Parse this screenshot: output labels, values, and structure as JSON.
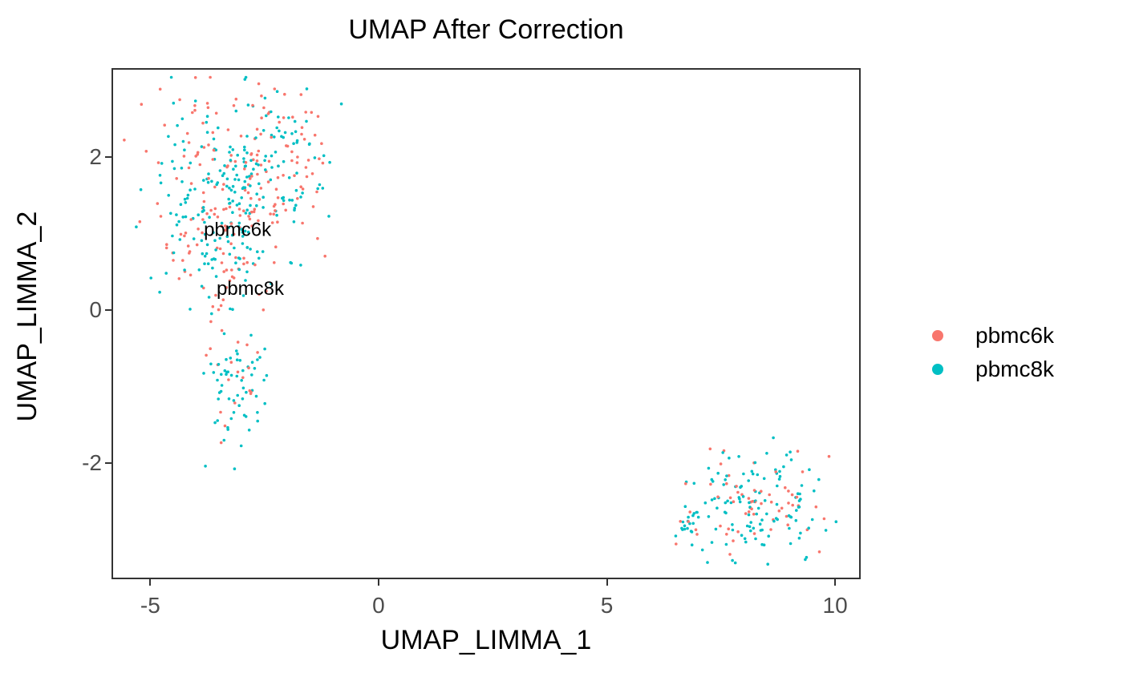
{
  "chart_data": {
    "type": "scatter",
    "title": "UMAP After Correction",
    "xlabel": "UMAP_LIMMA_1",
    "ylabel": "UMAP_LIMMA_2",
    "xlim": [
      -5.85,
      10.56
    ],
    "ylim": [
      -3.52,
      3.16
    ],
    "xticks": [
      -5,
      0,
      5,
      10
    ],
    "yticks": [
      2,
      0,
      -2
    ],
    "grid": false,
    "legend_position": "right",
    "panel_background": "#ffffff",
    "panel_border_color": "#333333",
    "tick_label_color": "#4d4d4d",
    "text_color": "#000000",
    "point_radius": 1.8,
    "seed": 7,
    "series": [
      {
        "name": "pbmc6k",
        "color": "#F8766D"
      },
      {
        "name": "pbmc8k",
        "color": "#00BFC4"
      }
    ],
    "annotations": [
      {
        "text": "pbmc6k",
        "x": -3.09,
        "y": 1.05
      },
      {
        "text": "pbmc8k",
        "x": -2.81,
        "y": 0.28
      }
    ],
    "clusters": [
      {
        "name": "top-left-main",
        "cx": -3.3,
        "cy": 1.7,
        "sx": 0.95,
        "sy": 0.62,
        "counts": {
          "pbmc6k": 130,
          "pbmc8k": 150
        }
      },
      {
        "name": "top-left-right-lobe",
        "cx": -2.2,
        "cy": 1.85,
        "sx": 0.62,
        "sy": 0.45,
        "counts": {
          "pbmc6k": 40,
          "pbmc8k": 50
        }
      },
      {
        "name": "top-left-lower",
        "cx": -3.35,
        "cy": 0.7,
        "sx": 0.5,
        "sy": 0.42,
        "counts": {
          "pbmc6k": 35,
          "pbmc8k": 42
        }
      },
      {
        "name": "mid-left-small",
        "cx": -3.1,
        "cy": -1.0,
        "sx": 0.33,
        "sy": 0.38,
        "counts": {
          "pbmc6k": 20,
          "pbmc8k": 60
        }
      },
      {
        "name": "bottom-right-main",
        "cx": 8.3,
        "cy": -2.5,
        "sx": 0.78,
        "sy": 0.33,
        "counts": {
          "pbmc6k": 58,
          "pbmc8k": 120
        }
      },
      {
        "name": "bottom-right-dense-blob",
        "cx": 6.78,
        "cy": -2.78,
        "sx": 0.16,
        "sy": 0.1,
        "counts": {
          "pbmc6k": 4,
          "pbmc8k": 16
        }
      }
    ]
  },
  "legend": {
    "items": [
      {
        "label": "pbmc6k",
        "color": "#F8766D"
      },
      {
        "label": "pbmc8k",
        "color": "#00BFC4"
      }
    ]
  }
}
